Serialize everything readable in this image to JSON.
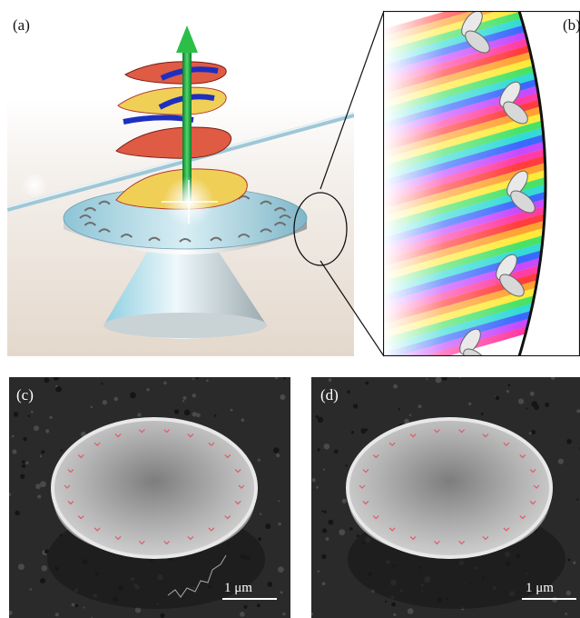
{
  "panels": {
    "a": {
      "label": "(a)"
    },
    "b": {
      "label": "(b)"
    },
    "c": {
      "label": "(c)",
      "scale": "1 μm"
    },
    "d": {
      "label": "(d)",
      "scale": "1 μm"
    }
  },
  "colors": {
    "vortex_arrow": "#22b14c",
    "helix_outer": "#1c2fbf",
    "helix_surface_red": "#d9483b",
    "helix_surface_yellow": "#f2e06a",
    "disk": "#a7d3e2",
    "sem_background": "#2a2a2a",
    "sem_marker": "#e05a6a"
  },
  "icons": {
    "helix": "helical-wavefront-icon",
    "arrow": "oam-arrow-icon",
    "particle": "nanorod-pair-icon"
  }
}
